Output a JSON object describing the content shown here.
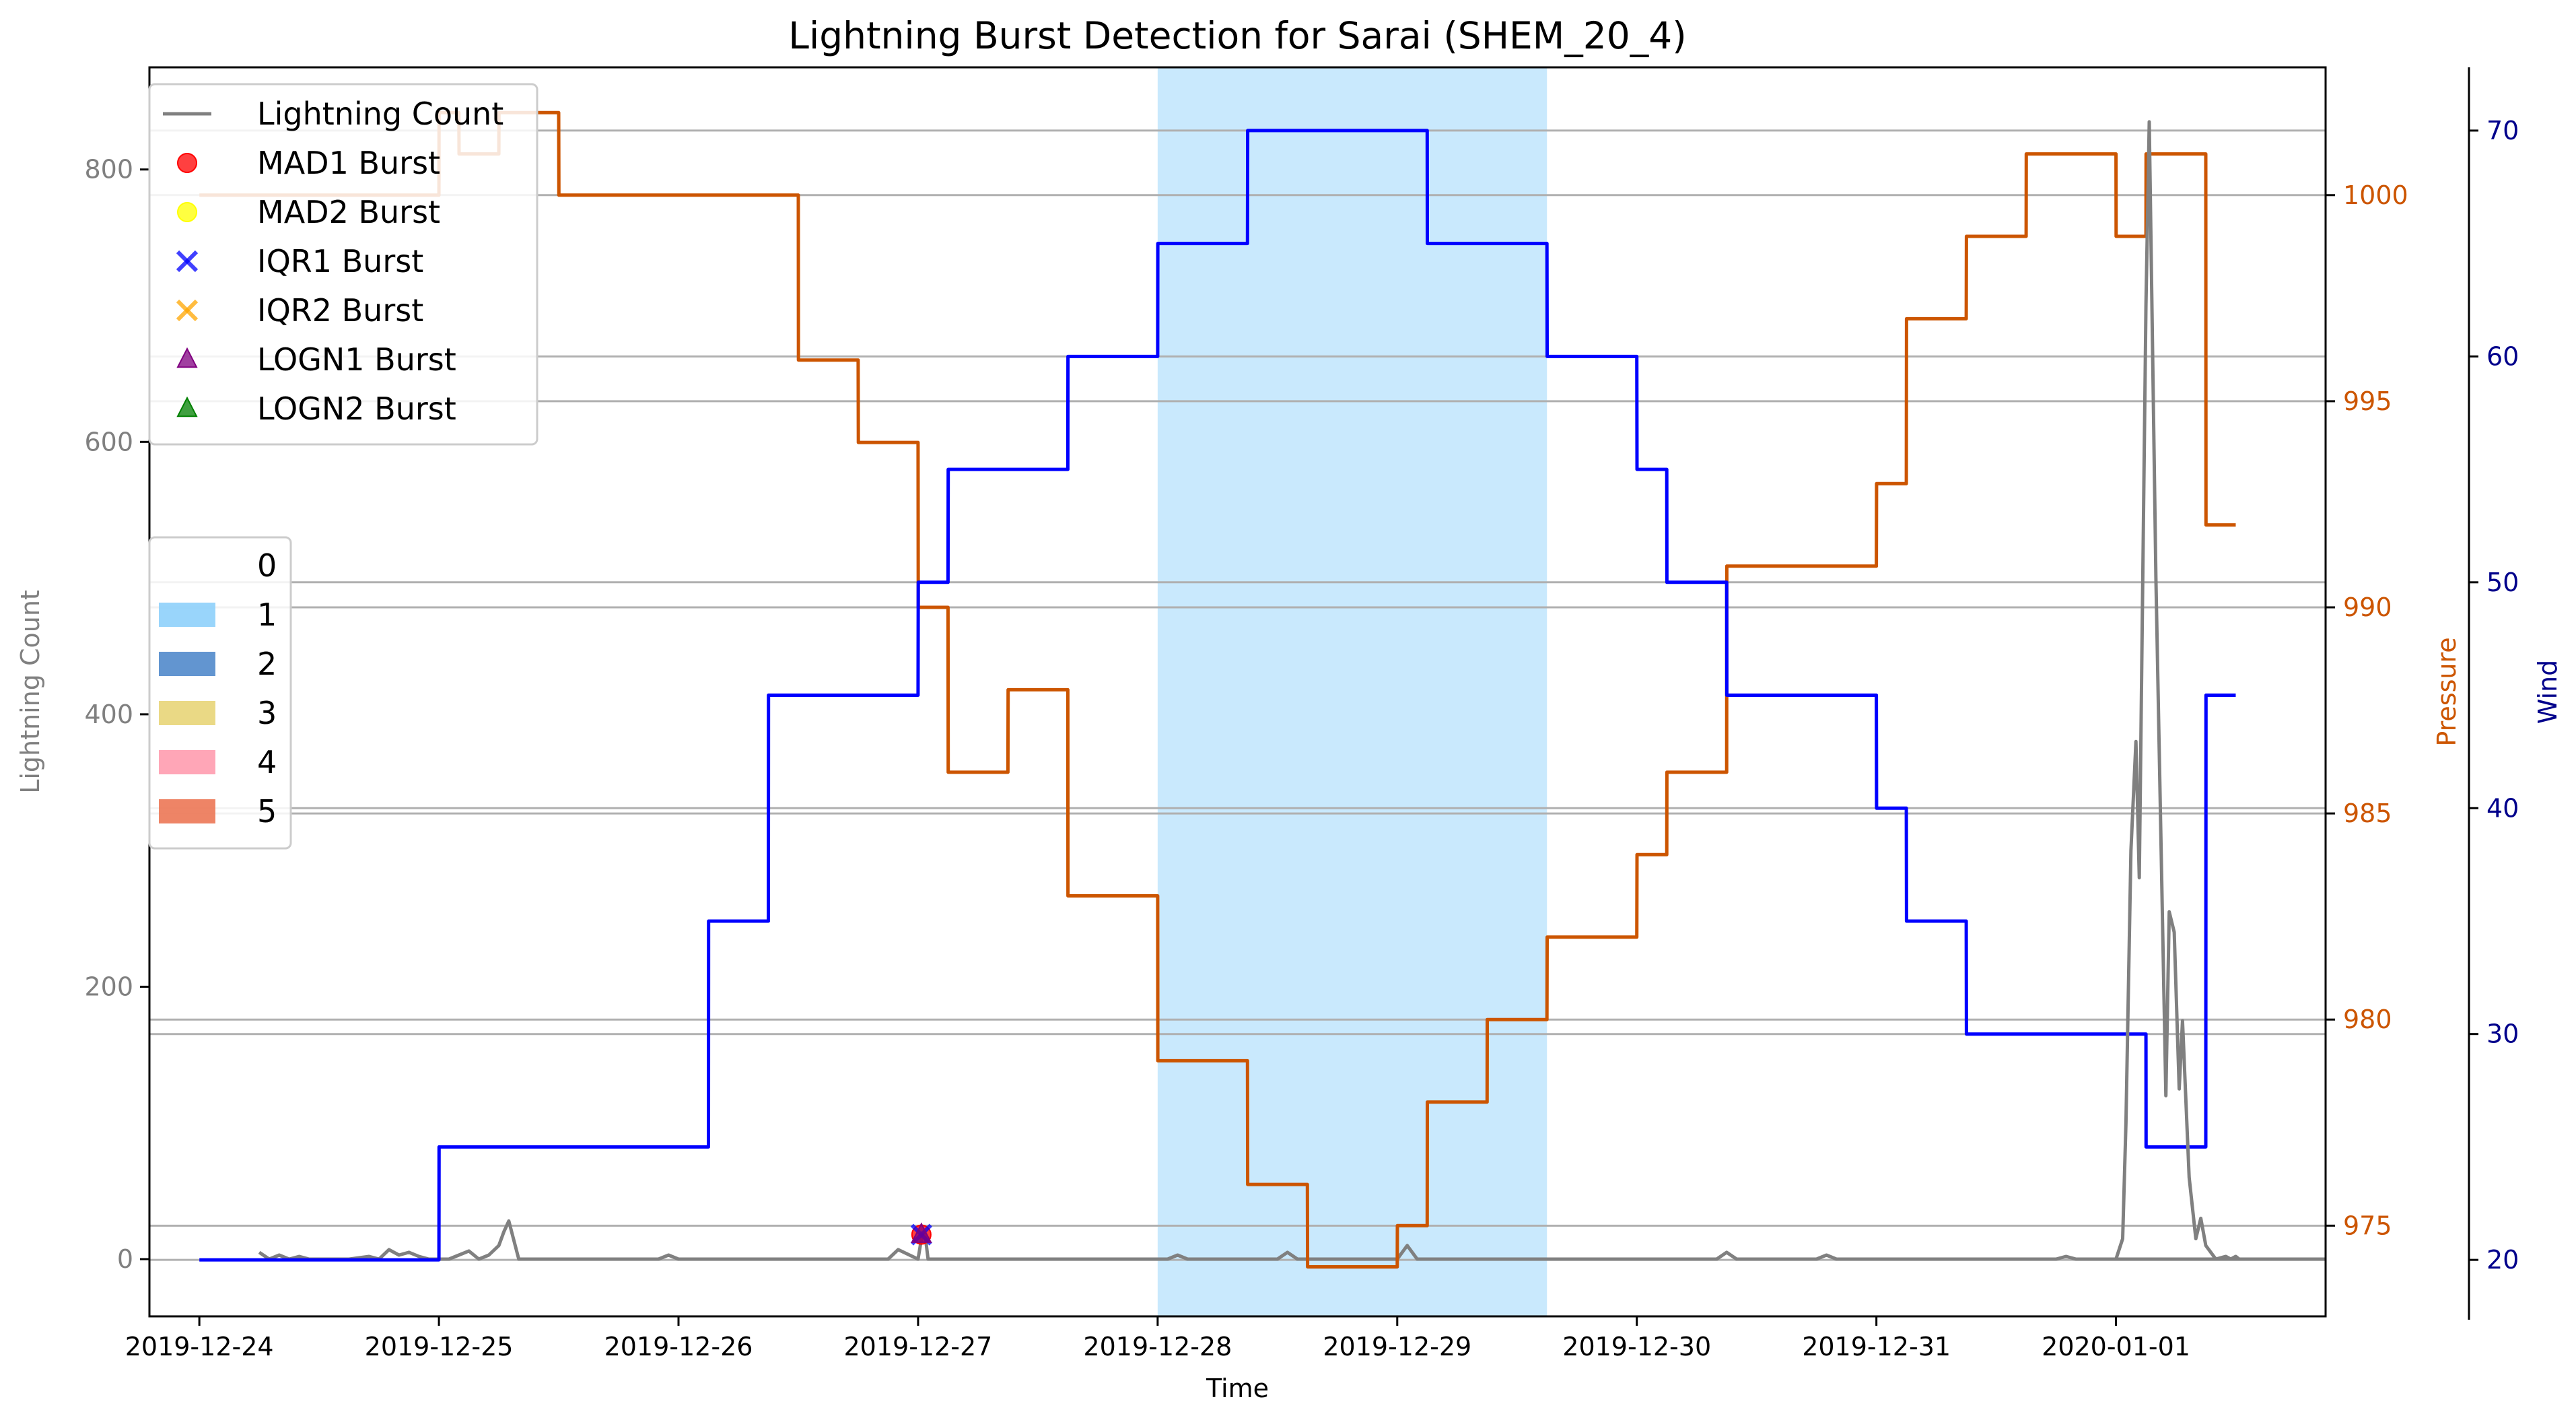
{
  "chart_data": {
    "type": "line",
    "title": "Lightning Burst Detection for Sarai (SHEM_20_4)",
    "xlabel": "Time",
    "ylabel_left": "Lightning Count",
    "ylabel_pressure": "Pressure",
    "ylabel_wind": "Wind",
    "xlim": [
      "2019-12-23T19:00",
      "2020-01-01T21:00"
    ],
    "ylim_count": [
      -42,
      875
    ],
    "ylim_pressure": [
      972.8,
      1003.1
    ],
    "ylim_wind": [
      17.5,
      72.8
    ],
    "x_ticks": [
      "2019-12-24",
      "2019-12-25",
      "2019-12-26",
      "2019-12-27",
      "2019-12-28",
      "2019-12-29",
      "2019-12-30",
      "2019-12-31",
      "2020-01-01"
    ],
    "y_ticks_count": [
      "0",
      "200",
      "400",
      "600",
      "800"
    ],
    "y_ticks_pressure": [
      "975",
      "980",
      "985",
      "990",
      "995",
      "1000"
    ],
    "y_ticks_wind": [
      "20",
      "30",
      "40",
      "50",
      "60",
      "70"
    ],
    "grid": "horizontal",
    "colors": {
      "lightning": "#808080",
      "pressure": "#cc5500",
      "wind": "#0000ff",
      "wind_axis": "#00008b",
      "highlight": "#87cefa"
    },
    "highlight_spans": [
      {
        "category": "1",
        "start": "2019-12-28T00:00",
        "end": "2019-12-29T15:00"
      }
    ],
    "series": [
      {
        "name": "Lightning Count",
        "axis": "count",
        "points": [
          [
            "2019-12-24T06:00",
            5
          ],
          [
            "2019-12-24T07:00",
            0
          ],
          [
            "2019-12-24T08:00",
            3
          ],
          [
            "2019-12-24T09:00",
            0
          ],
          [
            "2019-12-24T10:00",
            2
          ],
          [
            "2019-12-24T11:00",
            0
          ],
          [
            "2019-12-24T15:00",
            0
          ],
          [
            "2019-12-24T17:00",
            2
          ],
          [
            "2019-12-24T18:00",
            0
          ],
          [
            "2019-12-24T19:00",
            7
          ],
          [
            "2019-12-24T20:00",
            3
          ],
          [
            "2019-12-24T21:00",
            5
          ],
          [
            "2019-12-24T22:00",
            2
          ],
          [
            "2019-12-24T23:00",
            0
          ],
          [
            "2019-12-25T01:00",
            0
          ],
          [
            "2019-12-25T02:00",
            3
          ],
          [
            "2019-12-25T03:00",
            6
          ],
          [
            "2019-12-25T04:00",
            0
          ],
          [
            "2019-12-25T05:00",
            3
          ],
          [
            "2019-12-25T06:00",
            10
          ],
          [
            "2019-12-25T06:30",
            20
          ],
          [
            "2019-12-25T07:00",
            28
          ],
          [
            "2019-12-25T08:00",
            0
          ],
          [
            "2019-12-25T22:00",
            0
          ],
          [
            "2019-12-25T23:00",
            3
          ],
          [
            "2019-12-26T00:00",
            0
          ],
          [
            "2019-12-26T21:00",
            0
          ],
          [
            "2019-12-26T22:00",
            7
          ],
          [
            "2019-12-27T00:00",
            0
          ],
          [
            "2019-12-27T00:20",
            15
          ],
          [
            "2019-12-27T00:40",
            20
          ],
          [
            "2019-12-27T01:00",
            0
          ],
          [
            "2019-12-28T01:00",
            0
          ],
          [
            "2019-12-28T02:00",
            3
          ],
          [
            "2019-12-28T03:00",
            0
          ],
          [
            "2019-12-28T12:00",
            0
          ],
          [
            "2019-12-28T13:00",
            5
          ],
          [
            "2019-12-28T14:00",
            0
          ],
          [
            "2019-12-29T00:00",
            0
          ],
          [
            "2019-12-29T01:00",
            10
          ],
          [
            "2019-12-29T02:00",
            0
          ],
          [
            "2019-12-30T08:00",
            0
          ],
          [
            "2019-12-30T09:00",
            5
          ],
          [
            "2019-12-30T10:00",
            0
          ],
          [
            "2019-12-30T18:00",
            0
          ],
          [
            "2019-12-30T19:00",
            3
          ],
          [
            "2019-12-30T20:00",
            0
          ],
          [
            "2019-12-31T18:00",
            0
          ],
          [
            "2019-12-31T19:00",
            2
          ],
          [
            "2019-12-31T20:00",
            0
          ],
          [
            "2020-01-01T00:00",
            0
          ],
          [
            "2020-01-01T21:00",
            0
          ]
        ]
      },
      {
        "name": "Pressure",
        "axis": "pressure",
        "points": [
          [
            "2019-12-24T00:00",
            1000
          ],
          [
            "2019-12-25T00:00",
            1000
          ],
          [
            "2019-12-25T00:01",
            1002
          ],
          [
            "2019-12-25T02:00",
            1002
          ],
          [
            "2019-12-25T02:01",
            1001
          ],
          [
            "2019-12-25T06:00",
            1001
          ],
          [
            "2019-12-25T06:01",
            1002
          ],
          [
            "2019-12-25T12:00",
            1002
          ],
          [
            "2019-12-25T12:01",
            1000
          ],
          [
            "2019-12-26T12:00",
            1000
          ],
          [
            "2019-12-26T12:01",
            996
          ],
          [
            "2019-12-26T18:00",
            996
          ],
          [
            "2019-12-26T18:01",
            994
          ],
          [
            "2019-12-27T00:00",
            994
          ],
          [
            "2019-12-27T00:01",
            990
          ],
          [
            "2019-12-27T03:00",
            990
          ],
          [
            "2019-12-27T03:01",
            986
          ],
          [
            "2019-12-27T09:00",
            986
          ],
          [
            "2019-12-27T09:01",
            988
          ],
          [
            "2019-12-27T15:00",
            988
          ],
          [
            "2019-12-27T15:01",
            983
          ],
          [
            "2019-12-28T00:00",
            983
          ],
          [
            "2019-12-28T00:01",
            979
          ],
          [
            "2019-12-28T09:00",
            979
          ],
          [
            "2019-12-28T09:01",
            976
          ],
          [
            "2019-12-28T15:00",
            976
          ],
          [
            "2019-12-28T15:01",
            974
          ],
          [
            "2019-12-29T00:00",
            974
          ],
          [
            "2019-12-29T00:01",
            975
          ],
          [
            "2019-12-29T03:00",
            975
          ],
          [
            "2019-12-29T03:01",
            978
          ],
          [
            "2019-12-29T09:00",
            978
          ],
          [
            "2019-12-29T09:01",
            980
          ],
          [
            "2019-12-29T15:00",
            980
          ],
          [
            "2019-12-29T15:01",
            982
          ],
          [
            "2019-12-30T00:00",
            982
          ],
          [
            "2019-12-30T00:01",
            984
          ],
          [
            "2019-12-30T03:00",
            984
          ],
          [
            "2019-12-30T03:01",
            986
          ],
          [
            "2019-12-30T09:00",
            986
          ],
          [
            "2019-12-30T09:01",
            991
          ],
          [
            "2019-12-31T00:00",
            991
          ],
          [
            "2019-12-31T00:01",
            993
          ],
          [
            "2019-12-31T03:00",
            993
          ],
          [
            "2019-12-31T03:01",
            997
          ],
          [
            "2019-12-31T09:00",
            997
          ],
          [
            "2019-12-31T09:01",
            999
          ],
          [
            "2019-12-31T15:00",
            999
          ],
          [
            "2019-12-31T15:01",
            1001
          ],
          [
            "2020-01-01T00:00",
            1001
          ],
          [
            "2020-01-01T00:01",
            999
          ],
          [
            "2020-01-01T03:00",
            999
          ],
          [
            "2020-01-01T03:01",
            1001
          ],
          [
            "2020-01-01T09:00",
            1001
          ],
          [
            "2020-01-01T09:01",
            992
          ],
          [
            "2020-01-01T12:00",
            992
          ]
        ]
      },
      {
        "name": "Wind",
        "axis": "wind",
        "points": [
          [
            "2019-12-24T00:00",
            20
          ],
          [
            "2019-12-25T00:00",
            20
          ],
          [
            "2019-12-25T00:01",
            25
          ],
          [
            "2019-12-26T03:00",
            25
          ],
          [
            "2019-12-26T03:01",
            35
          ],
          [
            "2019-12-26T09:00",
            35
          ],
          [
            "2019-12-26T09:01",
            45
          ],
          [
            "2019-12-27T00:00",
            45
          ],
          [
            "2019-12-27T00:01",
            50
          ],
          [
            "2019-12-27T03:00",
            50
          ],
          [
            "2019-12-27T03:01",
            55
          ],
          [
            "2019-12-27T15:00",
            55
          ],
          [
            "2019-12-27T15:01",
            60
          ],
          [
            "2019-12-28T00:00",
            60
          ],
          [
            "2019-12-28T00:01",
            65
          ],
          [
            "2019-12-28T09:00",
            65
          ],
          [
            "2019-12-28T09:01",
            70
          ],
          [
            "2019-12-29T03:00",
            70
          ],
          [
            "2019-12-29T03:01",
            65
          ],
          [
            "2019-12-29T15:00",
            65
          ],
          [
            "2019-12-29T15:01",
            60
          ],
          [
            "2019-12-30T00:00",
            60
          ],
          [
            "2019-12-30T00:01",
            55
          ],
          [
            "2019-12-30T03:00",
            55
          ],
          [
            "2019-12-30T03:01",
            50
          ],
          [
            "2019-12-30T09:00",
            50
          ],
          [
            "2019-12-30T09:01",
            45
          ],
          [
            "2019-12-31T00:00",
            45
          ],
          [
            "2019-12-31T00:01",
            40
          ],
          [
            "2019-12-31T03:00",
            40
          ],
          [
            "2019-12-31T03:01",
            35
          ],
          [
            "2019-12-31T09:00",
            35
          ],
          [
            "2019-12-31T09:01",
            30
          ],
          [
            "2020-01-01T03:00",
            30
          ],
          [
            "2020-01-01T03:01",
            25
          ],
          [
            "2020-01-01T09:00",
            25
          ],
          [
            "2020-01-01T09:01",
            45
          ],
          [
            "2020-01-01T12:00",
            45
          ]
        ]
      },
      {
        "name": "Lightning Count",
        "axis": "count",
        "role": "late-burst",
        "points": [
          [
            "2020-01-01T00:00",
            0
          ],
          [
            "2020-01-01T00:40",
            15
          ],
          [
            "2020-01-01T01:00",
            100
          ],
          [
            "2020-01-01T01:30",
            300
          ],
          [
            "2020-01-01T02:00",
            380
          ],
          [
            "2020-01-01T02:20",
            280
          ],
          [
            "2020-01-01T03:00",
            700
          ],
          [
            "2020-01-01T03:20",
            835
          ],
          [
            "2020-01-01T04:00",
            500
          ],
          [
            "2020-01-01T05:00",
            120
          ],
          [
            "2020-01-01T05:20",
            255
          ],
          [
            "2020-01-01T05:50",
            240
          ],
          [
            "2020-01-01T06:20",
            125
          ],
          [
            "2020-01-01T06:40",
            175
          ],
          [
            "2020-01-01T07:20",
            60
          ],
          [
            "2020-01-01T08:00",
            15
          ],
          [
            "2020-01-01T08:30",
            30
          ],
          [
            "2020-01-01T09:00",
            10
          ],
          [
            "2020-01-01T10:00",
            0
          ],
          [
            "2020-01-01T11:00",
            2
          ],
          [
            "2020-01-01T11:30",
            0
          ],
          [
            "2020-01-01T12:00",
            2
          ],
          [
            "2020-01-01T12:20",
            0
          ]
        ]
      }
    ],
    "burst_markers": [
      {
        "name": "MAD1 Burst",
        "x": "2019-12-27T00:20",
        "y": 18,
        "marker": "circle",
        "color": "#ff0000"
      },
      {
        "name": "IQR1 Burst",
        "x": "2019-12-27T00:20",
        "y": 18,
        "marker": "x",
        "color": "#0000ff"
      },
      {
        "name": "LOGN1 Burst",
        "x": "2019-12-27T00:20",
        "y": 18,
        "marker": "triangle",
        "color": "#800080"
      }
    ],
    "legend_series": [
      {
        "label": "Lightning Count",
        "marker": "line",
        "color": "#808080"
      },
      {
        "label": "MAD1 Burst",
        "marker": "circle",
        "color": "#ff0000"
      },
      {
        "label": "MAD2 Burst",
        "marker": "circle",
        "color": "#ffff00"
      },
      {
        "label": "IQR1 Burst",
        "marker": "x",
        "color": "#0000ff"
      },
      {
        "label": "IQR2 Burst",
        "marker": "x",
        "color": "#ffa500"
      },
      {
        "label": "LOGN1 Burst",
        "marker": "triangle",
        "color": "#800080"
      },
      {
        "label": "LOGN2 Burst",
        "marker": "triangle",
        "color": "#008000"
      }
    ],
    "legend_category": [
      {
        "label": "0",
        "color": ""
      },
      {
        "label": "1",
        "color": "#87cefa"
      },
      {
        "label": "2",
        "color": "#4682c8"
      },
      {
        "label": "3",
        "color": "#e6d270"
      },
      {
        "label": "4",
        "color": "#ff96aa"
      },
      {
        "label": "5",
        "color": "#eb6e4b"
      }
    ],
    "legend_placement": [
      "upper-left",
      "center-left"
    ]
  }
}
